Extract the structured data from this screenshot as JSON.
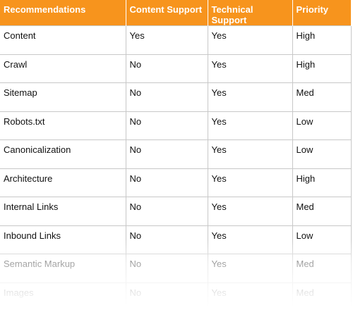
{
  "table": {
    "header": [
      "Recommendations",
      "Content Support",
      "Technical Support",
      "Priority"
    ],
    "rows": [
      [
        "Content",
        "Yes",
        "Yes",
        "High"
      ],
      [
        "Crawl",
        "No",
        "Yes",
        "High"
      ],
      [
        "Sitemap",
        "No",
        "Yes",
        "Med"
      ],
      [
        "Robots.txt",
        "No",
        "Yes",
        "Low"
      ],
      [
        "Canonicalization",
        "No",
        "Yes",
        "Low"
      ],
      [
        "Architecture",
        "No",
        "Yes",
        "High"
      ],
      [
        "Internal Links",
        "No",
        "Yes",
        "Med"
      ],
      [
        "Inbound Links",
        "No",
        "Yes",
        "Low"
      ],
      [
        "Semantic Markup",
        "No",
        "Yes",
        "Med"
      ],
      [
        "Images",
        "No",
        "Yes",
        "Med"
      ]
    ]
  }
}
